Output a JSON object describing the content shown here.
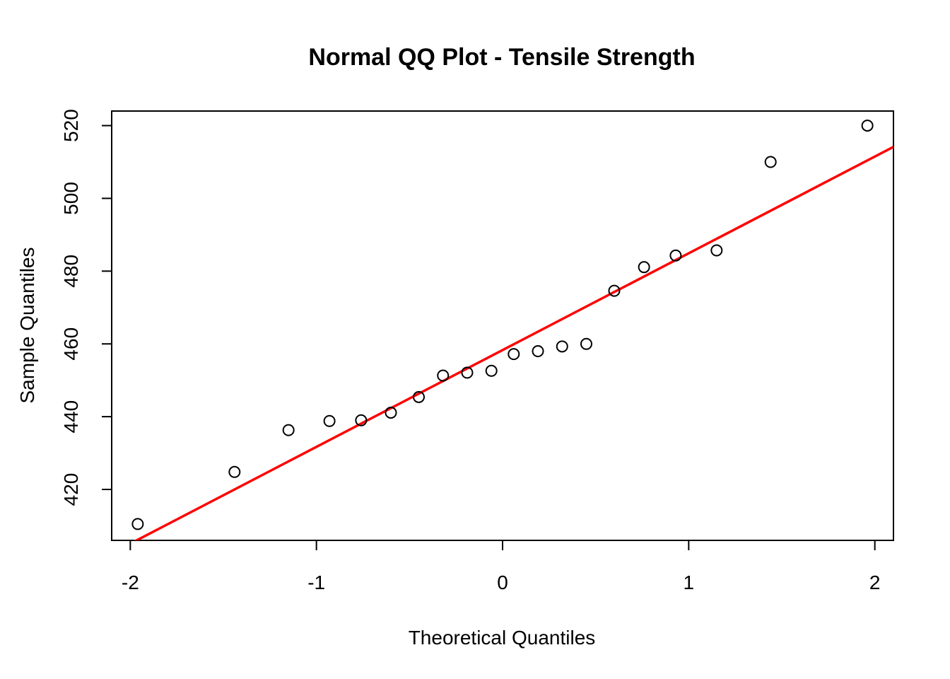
{
  "chart_data": {
    "type": "scatter",
    "title": "Normal QQ Plot - Tensile Strength",
    "xlabel": "Theoretical Quantiles",
    "ylabel": "Sample Quantiles",
    "xlim": [
      -2.1,
      2.1
    ],
    "ylim": [
      406,
      524
    ],
    "x_ticks": [
      -2,
      -1,
      0,
      1,
      2
    ],
    "y_ticks": [
      420,
      440,
      460,
      480,
      500,
      520
    ],
    "grid": false,
    "points": {
      "x": [
        -1.96,
        -1.44,
        -1.15,
        -0.93,
        -0.76,
        -0.6,
        -0.45,
        -0.32,
        -0.19,
        -0.06,
        0.06,
        0.19,
        0.32,
        0.45,
        0.6,
        0.76,
        0.93,
        1.15,
        1.44,
        1.96
      ],
      "y": [
        410.5,
        424.8,
        436.3,
        438.8,
        439.0,
        441.1,
        445.4,
        451.3,
        452.1,
        452.6,
        457.2,
        458.0,
        459.3,
        460.0,
        474.6,
        481.1,
        484.3,
        485.7,
        510.0,
        520.0
      ]
    },
    "reference_line": {
      "color": "#ff0000",
      "intercept": 458.3,
      "slope": 26.6
    },
    "point_color": "#000000"
  }
}
